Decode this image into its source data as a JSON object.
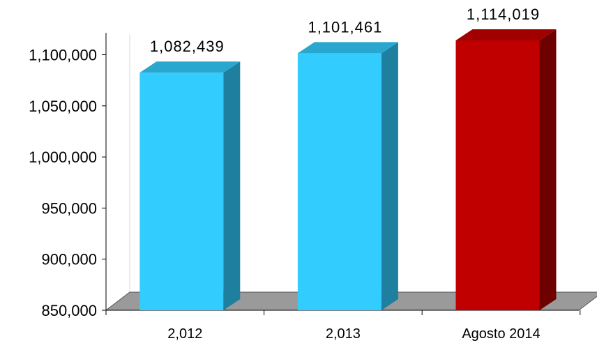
{
  "chart_data": {
    "type": "bar",
    "categories": [
      "2,012",
      "2,013",
      "Agosto 2014"
    ],
    "values": [
      1082439,
      1101461,
      1114019
    ],
    "data_labels": [
      "1,082,439",
      "1,101,461",
      "1,114,019"
    ],
    "ylim": [
      850000,
      1120000
    ],
    "yticks": [
      850000,
      900000,
      950000,
      1000000,
      1050000,
      1100000
    ],
    "ytick_labels": [
      "850,000",
      "900,000",
      "950,000",
      "1,000,000",
      "1,050,000",
      "1,100,000"
    ],
    "three_d": true,
    "grid": false,
    "legend": "none",
    "colors": {
      "default_front": "#33ccff",
      "default_top": "#2aa7cf",
      "default_side": "#1f7f9f",
      "highlight_front": "#c00000",
      "highlight_top": "#a00000",
      "highlight_side": "#6f0000",
      "floor": "#9a9a9a",
      "axis": "#000000",
      "wall_grid": "#d9d9d9"
    },
    "highlight_index": 2
  }
}
